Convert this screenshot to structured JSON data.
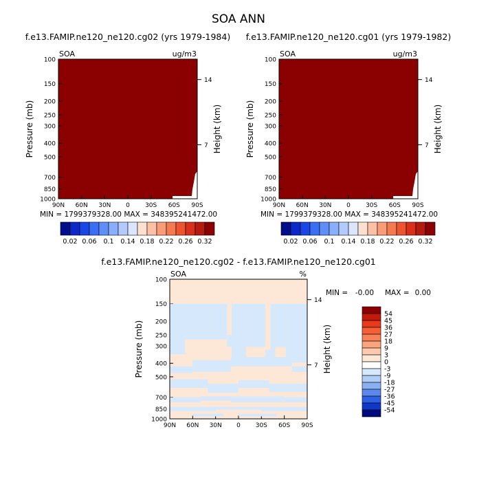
{
  "figure": {
    "title": "SOA ANN"
  },
  "chart_data": [
    {
      "type": "heatmap",
      "title": "f.e13.FAMIP.ne120_ne120.cg02 (yrs 1979-1984)",
      "left_label": "SOA",
      "units": "ug/m3",
      "ylabel": "Pressure (mb)",
      "ylabel_right": "Height (km)",
      "y_ticks": [
        "100",
        "150",
        "200",
        "250",
        "300",
        "400",
        "500",
        "700",
        "850",
        "1000"
      ],
      "y_ticks_right": [
        "14",
        "7"
      ],
      "x_ticks": [
        "90N",
        "60N",
        "30N",
        "0",
        "30S",
        "60S",
        "90S"
      ],
      "stats": "MIN = 1799379328.00   MAX = 348395241472.00",
      "fill_color": "#8b0000",
      "colorbar": {
        "labels": [
          "0.02",
          "0.06",
          "0.1",
          "0.14",
          "0.18",
          "0.22",
          "0.26",
          "0.32"
        ],
        "colors": [
          "#000e8a",
          "#0b28c8",
          "#1a46e6",
          "#3a6ef5",
          "#5f8ef8",
          "#8aaefa",
          "#b3cbfc",
          "#d9e6fd",
          "#fde0d0",
          "#fcc0a5",
          "#fa9c78",
          "#f57a50",
          "#ec5530",
          "#d8301a",
          "#b51a0f",
          "#8b0000"
        ]
      }
    },
    {
      "type": "heatmap",
      "title": "f.e13.FAMIP.ne120_ne120.cg01 (yrs 1979-1982)",
      "left_label": "SOA",
      "units": "ug/m3",
      "ylabel": "Pressure (mb)",
      "ylabel_right": "Height (km)",
      "y_ticks": [
        "100",
        "150",
        "200",
        "250",
        "300",
        "400",
        "500",
        "700",
        "850",
        "1000"
      ],
      "y_ticks_right": [
        "14",
        "7"
      ],
      "x_ticks": [
        "90N",
        "60N",
        "30N",
        "0",
        "30S",
        "60S",
        "90S"
      ],
      "stats": "MIN = 1799379328.00   MAX = 348395241472.00",
      "fill_color": "#8b0000",
      "colorbar": {
        "labels": [
          "0.02",
          "0.06",
          "0.1",
          "0.14",
          "0.18",
          "0.22",
          "0.26",
          "0.32"
        ],
        "colors": [
          "#000e8a",
          "#0b28c8",
          "#1a46e6",
          "#3a6ef5",
          "#5f8ef8",
          "#8aaefa",
          "#b3cbfc",
          "#d9e6fd",
          "#fde0d0",
          "#fcc0a5",
          "#fa9c78",
          "#f57a50",
          "#ec5530",
          "#d8301a",
          "#b51a0f",
          "#8b0000"
        ]
      }
    },
    {
      "type": "heatmap",
      "title": "f.e13.FAMIP.ne120_ne120.cg02 - f.e13.FAMIP.ne120_ne120.cg01",
      "left_label": "SOA",
      "units": "%",
      "ylabel": "Pressure (mb)",
      "ylabel_right": "Height (km)",
      "y_ticks": [
        "100",
        "150",
        "200",
        "250",
        "300",
        "400",
        "500",
        "700",
        "850",
        "1000"
      ],
      "y_ticks_right": [
        "14",
        "7"
      ],
      "x_ticks": [
        "90N",
        "60N",
        "30N",
        "0",
        "30S",
        "60S",
        "90S"
      ],
      "stats": {
        "min_label": "MIN =",
        "min_value": "-0.00",
        "max_label": "MAX =",
        "max_value": "0.00"
      },
      "fill_color": "#fde8d8",
      "pattern_color": "#d6e8fb",
      "colorbar": {
        "labels": [
          "54",
          "45",
          "36",
          "27",
          "18",
          "9",
          "3",
          "0",
          "-3",
          "-9",
          "-18",
          "-27",
          "-36",
          "-45",
          "-54"
        ],
        "colors": [
          "#8b0000",
          "#c41a0b",
          "#e8391c",
          "#f55e36",
          "#f88258",
          "#fba57f",
          "#fdcab0",
          "#fde8d8",
          "#ffffff",
          "#d6e8fb",
          "#b0cdf7",
          "#8aaff3",
          "#5b88ec",
          "#2f5fe2",
          "#0f38c8",
          "#000a80"
        ]
      }
    }
  ]
}
